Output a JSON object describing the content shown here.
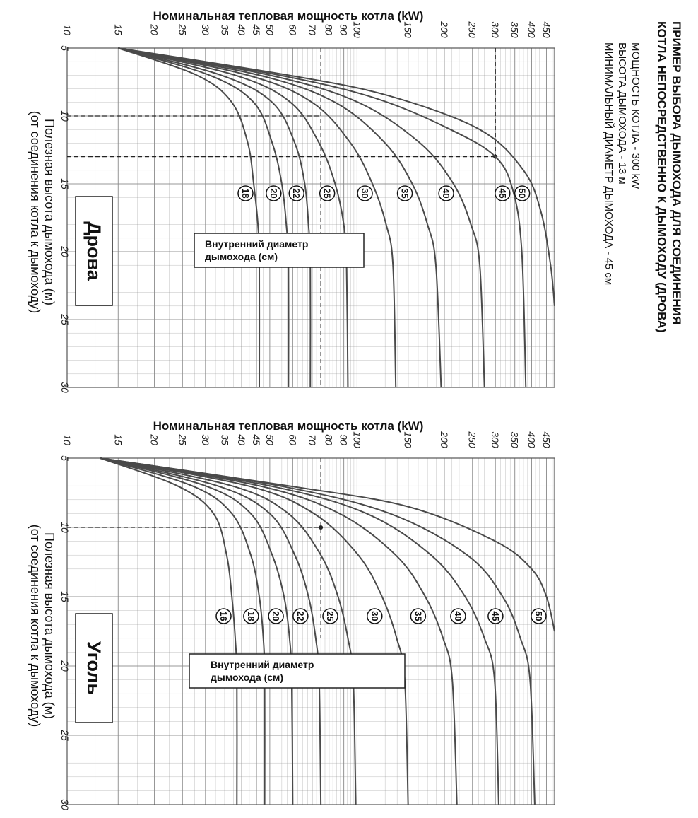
{
  "example": {
    "title_line1": "ПРИМЕР   ВЫБОРА   ДЫМОХОДА   ДЛЯ   СОЕДИНЕНИЯ",
    "title_line2": "КОТЛА НЕПОСРЕДСТВЕННО К ДЫМОХОДУ (ДРОВА)",
    "line1": "МОЩНОСТЬ КОТЛА - 300 kW",
    "line2": "ВЫСОТА ДЫМОХОДА - 13 м",
    "line3": "МИНИМАЛЬНЫЙ ДИАМЕТР ДЫМОХОДА - 45 см"
  },
  "colors": {
    "curve": "#4a4a4a",
    "grid": "#8c8c8c",
    "guide": "#222222",
    "background": "#ffffff"
  },
  "chart_data": [
    {
      "type": "line",
      "panel_label": "Дрова",
      "power_axis_label": "Номинальная тепловая мощность котла (kW)",
      "height_axis_label_1": "Полезная высота дымохода (м)",
      "height_axis_label_2": "(от соединения котла к дымоходу)",
      "legend_box_line1": "Внутренний  диаметр",
      "legend_box_line2": "дымохода  (см)",
      "power_ticks": [
        "10",
        "15",
        "20",
        "25",
        "30",
        "35",
        "40",
        "45",
        "50",
        "60",
        "70",
        "80",
        "90",
        "100",
        "150",
        "200",
        "250",
        "300",
        "350",
        "400",
        "450"
      ],
      "height_ticks": [
        "5",
        "10",
        "15",
        "20",
        "25",
        "30"
      ],
      "power_scale": "log",
      "power_range": [
        10,
        480
      ],
      "height_range": [
        5,
        30
      ],
      "diameter_labels": [
        "18",
        "20",
        "22",
        "25",
        "30",
        "35",
        "40",
        "45",
        "50"
      ],
      "series": [
        {
          "name": "18",
          "points": [
            [
              15,
              5
            ],
            [
              28,
              7
            ],
            [
              37,
              9
            ],
            [
              42,
              12
            ],
            [
              44,
              15
            ],
            [
              45.5,
              18
            ],
            [
              46,
              21
            ],
            [
              46,
              30
            ]
          ]
        },
        {
          "name": "20",
          "points": [
            [
              15,
              5
            ],
            [
              31,
              7
            ],
            [
              44,
              9
            ],
            [
              51,
              12
            ],
            [
              55,
              15
            ],
            [
              57,
              18
            ],
            [
              58,
              21
            ],
            [
              58,
              30
            ]
          ]
        },
        {
          "name": "22",
          "points": [
            [
              15,
              5
            ],
            [
              34,
              7
            ],
            [
              51,
              9
            ],
            [
              61,
              12
            ],
            [
              66,
              15
            ],
            [
              68,
              18
            ],
            [
              69,
              21
            ],
            [
              69,
              30
            ]
          ]
        },
        {
          "name": "25",
          "points": [
            [
              15,
              5
            ],
            [
              38,
              7
            ],
            [
              59,
              9
            ],
            [
              74,
              12
            ],
            [
              84,
              15
            ],
            [
              90,
              18
            ],
            [
              92,
              21
            ],
            [
              93,
              30
            ]
          ]
        },
        {
          "name": "30",
          "points": [
            [
              15,
              5
            ],
            [
              42,
              7
            ],
            [
              70,
              9
            ],
            [
              95,
              12
            ],
            [
              113,
              15
            ],
            [
              126,
              18
            ],
            [
              133,
              21
            ],
            [
              136,
              30
            ]
          ]
        },
        {
          "name": "35",
          "points": [
            [
              15,
              5
            ],
            [
              46,
              7
            ],
            [
              84,
              9
            ],
            [
              125,
              12
            ],
            [
              155,
              15
            ],
            [
              175,
              18
            ],
            [
              187,
              21
            ],
            [
              195,
              30
            ]
          ]
        },
        {
          "name": "40",
          "points": [
            [
              15,
              5
            ],
            [
              50,
              7
            ],
            [
              101,
              9
            ],
            [
              165,
              12
            ],
            [
              215,
              15
            ],
            [
              247,
              18
            ],
            [
              265,
              21
            ],
            [
              275,
              30
            ]
          ]
        },
        {
          "name": "45",
          "points": [
            [
              15,
              5
            ],
            [
              54,
              7
            ],
            [
              116,
              8.7
            ],
            [
              210,
              11
            ],
            [
              300,
              13
            ],
            [
              345,
              15.5
            ],
            [
              370,
              20
            ],
            [
              382,
              30
            ]
          ]
        },
        {
          "name": "50",
          "points": [
            [
              15,
              5
            ],
            [
              58,
              7
            ],
            [
              128,
              8.5
            ],
            [
              265,
              11
            ],
            [
              375,
              14
            ],
            [
              430,
              17
            ],
            [
              465,
              21
            ],
            [
              480,
              24
            ]
          ]
        }
      ],
      "guides": [
        {
          "power": [
            10,
            75
          ],
          "height": [
            10,
            10
          ]
        },
        {
          "power": [
            75,
            75
          ],
          "height": [
            5,
            30
          ]
        },
        {
          "power": [
            10,
            300
          ],
          "height": [
            13,
            13
          ]
        },
        {
          "power": [
            300,
            300
          ],
          "height": [
            5,
            13
          ]
        }
      ],
      "guide_marker": {
        "power": 300,
        "height": 13
      }
    },
    {
      "type": "line",
      "panel_label": "Уголь",
      "power_axis_label": "Номинальная тепловая мощность котла  (kW)",
      "height_axis_label_1": "Полезная высота дымохода (м)",
      "height_axis_label_2": "(от соединения котла к дымоходу)",
      "legend_box_line1": "Внутренний  диаметр",
      "legend_box_line2": "дымохода  (см)",
      "power_ticks": [
        "10",
        "15",
        "20",
        "25",
        "30",
        "35",
        "40",
        "45",
        "50",
        "60",
        "70",
        "80",
        "90",
        "100",
        "150",
        "200",
        "250",
        "300",
        "350",
        "400",
        "450"
      ],
      "height_ticks": [
        "5",
        "10",
        "15",
        "20",
        "25",
        "30"
      ],
      "power_scale": "log",
      "power_range": [
        10,
        480
      ],
      "height_range": [
        5,
        30
      ],
      "diameter_labels": [
        "16",
        "18",
        "20",
        "22",
        "25",
        "30",
        "35",
        "40",
        "45",
        "50"
      ],
      "series": [
        {
          "name": "16",
          "points": [
            [
              13,
              5
            ],
            [
              24,
              7
            ],
            [
              32,
              9
            ],
            [
              35.5,
              12
            ],
            [
              37,
              15
            ],
            [
              38,
              18
            ],
            [
              38.5,
              21
            ],
            [
              38.5,
              30
            ]
          ]
        },
        {
          "name": "18",
          "points": [
            [
              13,
              5
            ],
            [
              27,
              7
            ],
            [
              37,
              9
            ],
            [
              43,
              12
            ],
            [
              46,
              15
            ],
            [
              47.5,
              18
            ],
            [
              48,
              21
            ],
            [
              48,
              30
            ]
          ]
        },
        {
          "name": "20",
          "points": [
            [
              13,
              5
            ],
            [
              30,
              7
            ],
            [
              43,
              9
            ],
            [
              51,
              12
            ],
            [
              56,
              15
            ],
            [
              58.5,
              18
            ],
            [
              59.5,
              21
            ],
            [
              60,
              30
            ]
          ]
        },
        {
          "name": "22",
          "points": [
            [
              13,
              5
            ],
            [
              33,
              7
            ],
            [
              50,
              9
            ],
            [
              61,
              12
            ],
            [
              68,
              15
            ],
            [
              72,
              18
            ],
            [
              74,
              21
            ],
            [
              75,
              30
            ]
          ]
        },
        {
          "name": "25",
          "points": [
            [
              13,
              5
            ],
            [
              37,
              7
            ],
            [
              58,
              9
            ],
            [
              75,
              12
            ],
            [
              86,
              15
            ],
            [
              93,
              18
            ],
            [
              97,
              21
            ],
            [
              99,
              30
            ]
          ]
        },
        {
          "name": "30",
          "points": [
            [
              13,
              5
            ],
            [
              42,
              7
            ],
            [
              71,
              9
            ],
            [
              101,
              12
            ],
            [
              122,
              15
            ],
            [
              137,
              18
            ],
            [
              146,
              21
            ],
            [
              150,
              30
            ]
          ]
        },
        {
          "name": "35",
          "points": [
            [
              13,
              5
            ],
            [
              46,
              7
            ],
            [
              87,
              9
            ],
            [
              136,
              12
            ],
            [
              172,
              15
            ],
            [
              198,
              18
            ],
            [
              213,
              21
            ],
            [
              221,
              30
            ]
          ]
        },
        {
          "name": "40",
          "points": [
            [
              13,
              5
            ],
            [
              50,
              7
            ],
            [
              108,
              9
            ],
            [
              180,
              12
            ],
            [
              236,
              15
            ],
            [
              275,
              18
            ],
            [
              298,
              21
            ],
            [
              308,
              30
            ]
          ]
        },
        {
          "name": "45",
          "points": [
            [
              13,
              5
            ],
            [
              54,
              7
            ],
            [
              130,
              9
            ],
            [
              240,
              12
            ],
            [
              318,
              15
            ],
            [
              366,
              18
            ],
            [
              395,
              21
            ],
            [
              410,
              30
            ]
          ]
        },
        {
          "name": "50",
          "points": [
            [
              13,
              5
            ],
            [
              58,
              7
            ],
            [
              150,
              8.5
            ],
            [
              300,
              11
            ],
            [
              400,
              13
            ],
            [
              450,
              15
            ],
            [
              480,
              17.5
            ]
          ]
        }
      ],
      "guides": [
        {
          "power": [
            10,
            75
          ],
          "height": [
            10,
            10
          ]
        },
        {
          "power": [
            75,
            75
          ],
          "height": [
            5,
            18
          ]
        }
      ],
      "guide_marker": {
        "power": 75,
        "height": 10
      }
    }
  ]
}
